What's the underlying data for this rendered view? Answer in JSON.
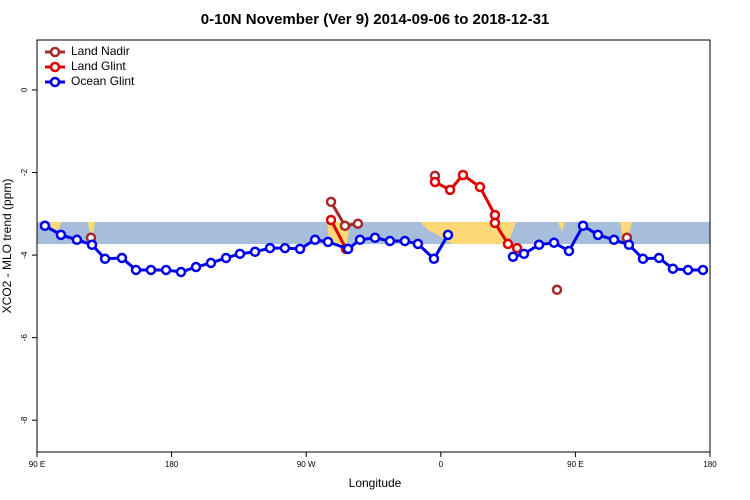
{
  "chart_data": {
    "type": "line",
    "title": "0-10N November (Ver 9)   2014-09-06 to 2018-12-31",
    "xlabel": "Longitude",
    "ylabel": "XCO2 - MLO trend (ppm)",
    "xlim": [
      90,
      540
    ],
    "xticks": [
      {
        "value": 90,
        "label": "90 E"
      },
      180,
      {
        "value": 270,
        "label": "90 W"
      },
      {
        "value": 360,
        "label": "0"
      },
      {
        "value": 450,
        "label": "90 E"
      },
      {
        "value": 540,
        "label": "180"
      }
    ],
    "ylim": [
      -8.77,
      1.21
    ],
    "yticks": [
      0,
      -2,
      -4,
      -6,
      -8
    ],
    "legend": "top-left",
    "series": [
      {
        "name": "Land Nadir",
        "color": "#a52a2a",
        "x": [
          126.1,
          206,
          286.6,
          295.9,
          304.6,
          330,
          356.1,
          397,
          437.7,
          461,
          484.5
        ],
        "values": [
          -3.58,
          null,
          -2.71,
          -3.29,
          -3.24,
          null,
          -2.08,
          null,
          -4.84,
          null,
          -3.58
        ]
      },
      {
        "name": "Land Glint",
        "color": "#e00000",
        "x": [
          286.6,
          296.6,
          326,
          356.1,
          366.2,
          374.8,
          386.2,
          396.2,
          396.2,
          404.9,
          411.0
        ],
        "values": [
          -3.15,
          -3.85,
          null,
          -2.23,
          -2.42,
          -2.06,
          -2.35,
          -3.03,
          -3.22,
          -3.73,
          -3.83
        ]
      },
      {
        "name": "Ocean Glint",
        "color": "#0000ee",
        "x": [
          95.3,
          106,
          116.7,
          126.8,
          135.5,
          146.8,
          156.2,
          166.2,
          176.3,
          186.3,
          196.3,
          206.3,
          216.4,
          225.7,
          235.8,
          245.8,
          255.8,
          265.9,
          275.9,
          284.6,
          298,
          306,
          316,
          326,
          336,
          344.7,
          355.4,
          364.8,
          386,
          408.3,
          415.6,
          425.7,
          435.7,
          445.7,
          455.1,
          465.1,
          475.8,
          485.8,
          495.2,
          505.9,
          515.2,
          525.3,
          535.3
        ],
        "values": [
          -3.29,
          -3.51,
          -3.63,
          -3.75,
          -4.09,
          -4.07,
          -4.36,
          -4.36,
          -4.36,
          -4.41,
          -4.29,
          -4.19,
          -4.07,
          -3.97,
          -3.92,
          -3.83,
          -3.83,
          -3.85,
          -3.63,
          -3.68,
          -3.85,
          -3.63,
          -3.58,
          -3.66,
          -3.66,
          -3.73,
          -4.09,
          -3.51,
          null,
          -4.04,
          -3.97,
          -3.75,
          -3.7,
          -3.9,
          -3.29,
          -3.51,
          -3.63,
          -3.75,
          -4.09,
          -4.07,
          -4.33,
          -4.36,
          -4.36
        ]
      }
    ]
  }
}
